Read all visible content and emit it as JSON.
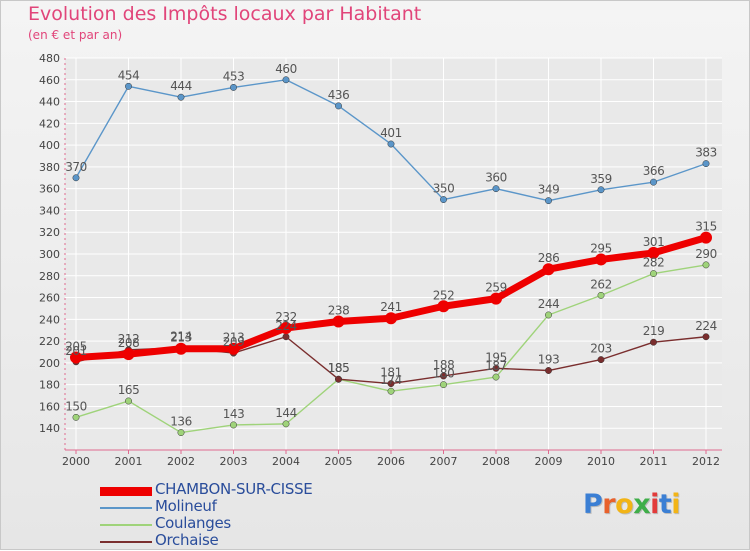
{
  "title": "Evolution des Impôts locaux par Habitant",
  "subtitle": "(en € et par an)",
  "logo_text": "Proxiti",
  "colors": {
    "title": "#e1457a",
    "axis": "#e06a8f",
    "grid": "#ffffff",
    "label": "#444444"
  },
  "chart_data": {
    "type": "line",
    "x": [
      "2000",
      "2001",
      "2002",
      "2003",
      "2004",
      "2005",
      "2006",
      "2007",
      "2008",
      "2009",
      "2010",
      "2011",
      "2012"
    ],
    "ylim": [
      120,
      480
    ],
    "yticks": [
      140,
      160,
      180,
      200,
      220,
      240,
      260,
      280,
      300,
      320,
      340,
      360,
      380,
      400,
      420,
      440,
      460,
      480
    ],
    "grid": true,
    "legend_position": "bottom-left",
    "series": [
      {
        "name": "CHAMBON-SUR-CISSE",
        "values": [
          205,
          208,
          213,
          213,
          232,
          238,
          241,
          252,
          259,
          286,
          295,
          301,
          315
        ],
        "labels": [
          "205",
          "208",
          "213",
          "213",
          "232",
          "238",
          "241",
          "252",
          "259",
          "286",
          "295",
          "301",
          "315"
        ],
        "color": "#ee0000",
        "bold": true
      },
      {
        "name": "Molineuf",
        "values": [
          370,
          454,
          444,
          453,
          460,
          436,
          401,
          350,
          360,
          349,
          359,
          366,
          383
        ],
        "labels": [
          "370",
          "454",
          "444",
          "453",
          "460",
          "436",
          "401",
          "350",
          "360",
          "349",
          "359",
          "366",
          "383"
        ],
        "color": "#5b96c9",
        "bold": false
      },
      {
        "name": "Coulanges",
        "values": [
          150,
          165,
          136,
          143,
          144,
          185,
          174,
          180,
          187,
          244,
          262,
          282,
          290
        ],
        "labels": [
          "150",
          "165",
          "136",
          "143",
          "144",
          "185",
          "174",
          "180",
          "187",
          "244",
          "262",
          "282",
          "290"
        ],
        "color": "#9fd37a",
        "bold": false
      },
      {
        "name": "Orchaise",
        "values": [
          201,
          212,
          214,
          209,
          224,
          185,
          181,
          188,
          195,
          193,
          203,
          219,
          224
        ],
        "labels": [
          "201",
          "212",
          "214",
          "209",
          "224",
          "185",
          "181",
          "188",
          "195",
          "193",
          "203",
          "219",
          "224"
        ],
        "color": "#7a2e2e",
        "bold": false
      }
    ]
  }
}
